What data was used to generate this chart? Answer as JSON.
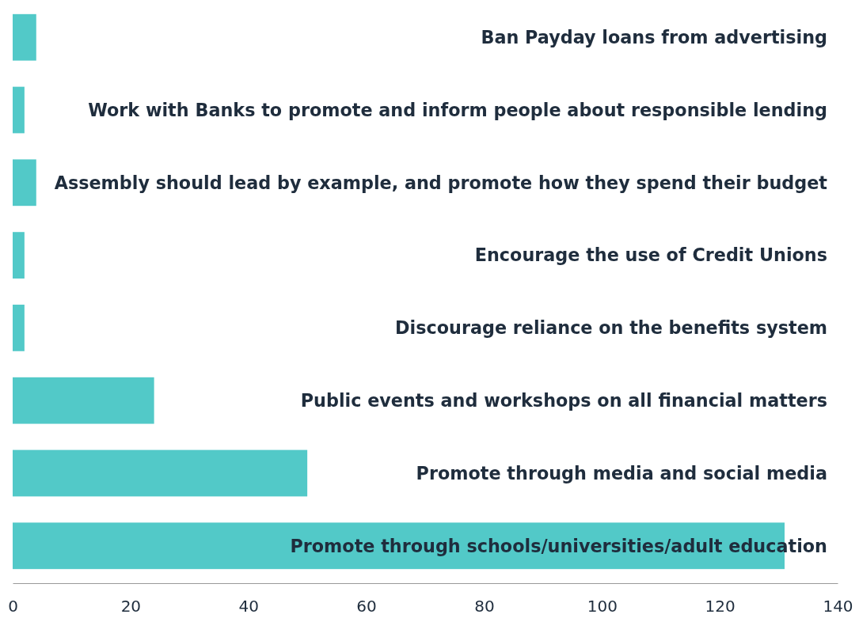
{
  "chart_data": {
    "type": "bar",
    "orientation": "horizontal",
    "categories": [
      "Ban Payday loans from advertising",
      "Work with Banks to promote and inform people about responsible lending",
      "Assembly should lead by example, and promote how they spend their budget",
      "Encourage the use of Credit Unions",
      "Discourage reliance on the benefits system",
      "Public events and workshops on all financial matters",
      "Promote through media and social media",
      "Promote through schools/universities/adult education"
    ],
    "values": [
      4,
      2,
      4,
      2,
      2,
      24,
      50,
      131
    ],
    "color": "#52c9c8",
    "xlim": [
      0,
      140
    ],
    "xticks": [
      0,
      20,
      40,
      60,
      80,
      100,
      120,
      140
    ],
    "grid": false
  }
}
